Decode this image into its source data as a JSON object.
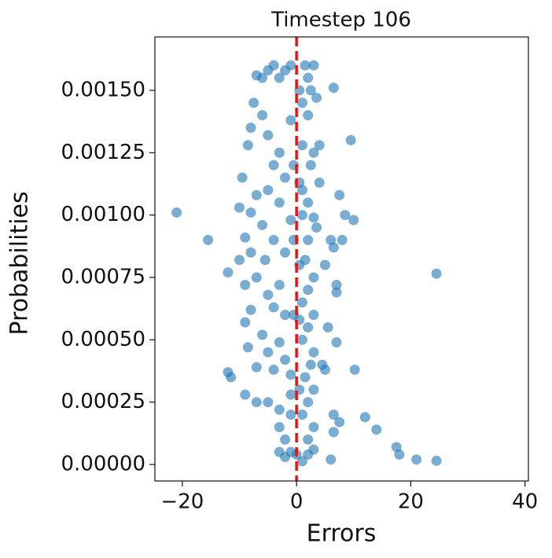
{
  "chart_data": {
    "type": "scatter",
    "title": "Timestep 106",
    "xlabel": "Errors",
    "ylabel": "Probabilities",
    "color": "#1f77b4",
    "vline": {
      "x": 0,
      "color": "#ee1111"
    },
    "x": [
      -21,
      -15.5,
      24.5,
      24.5,
      21,
      18,
      17.5,
      14,
      12,
      10.2,
      9.5,
      6.5,
      10,
      8.5,
      7.5,
      6.5,
      8,
      7,
      5,
      6.5,
      7.5,
      7,
      6.5,
      6,
      7,
      6,
      5.5,
      5,
      4.5,
      4,
      4,
      3.5,
      3,
      3.5,
      2.5,
      2,
      1.5,
      1,
      2,
      3,
      2.5,
      1,
      2,
      1,
      3,
      2,
      1.5,
      3,
      2,
      1,
      3,
      2,
      1,
      3,
      2.5,
      1.5,
      3,
      2,
      1,
      3,
      2,
      3,
      2,
      1,
      -1,
      -2,
      -3,
      -4,
      -5,
      -6,
      -7,
      -7.5,
      -6,
      -8,
      -8.5,
      -5,
      -3,
      -4,
      -2,
      -5,
      -9.5,
      -7,
      -3,
      -8,
      -10,
      -6,
      -9,
      -4,
      -2,
      -8,
      -5.5,
      -10,
      -12,
      -7,
      -3,
      -9,
      -5,
      -8,
      -4,
      -2,
      -9,
      -6,
      -3,
      -8.5,
      -5,
      -2,
      -7,
      -4,
      -1,
      -12,
      -11.5,
      -9,
      -7,
      -5,
      -3,
      -1,
      -3,
      -2,
      -3,
      -2,
      -1,
      0,
      0.5,
      -0.5,
      0.5,
      -0.5,
      0.5,
      -0.5,
      0.5,
      -1,
      1,
      -1,
      0.5,
      -1
    ],
    "values": [
      0.00101,
      0.0009,
      0.000765,
      1.5e-05,
      2e-05,
      4e-05,
      7e-05,
      0.00014,
      0.00019,
      0.00038,
      0.0013,
      0.00151,
      0.00098,
      0.001,
      0.00108,
      0.00087,
      0.0009,
      0.00072,
      0.0008,
      0.0002,
      0.00017,
      0.00049,
      0.00013,
      2e-05,
      0.00069,
      0.0009,
      0.00055,
      0.00038,
      0.0004,
      0.00128,
      0.00113,
      0.00095,
      0.0016,
      0.00147,
      0.0015,
      0.00155,
      0.0016,
      0.00145,
      0.0014,
      0.00125,
      0.0012,
      0.0011,
      0.00105,
      0.001,
      0.00099,
      0.0009,
      0.00082,
      0.00075,
      0.0007,
      0.00065,
      0.0006,
      0.00055,
      0.0005,
      0.00045,
      0.0004,
      0.00035,
      0.0003,
      0.00025,
      0.0002,
      0.00015,
      0.0001,
      6e-05,
      4e-05,
      1.3e-05,
      0.0016,
      0.00158,
      0.00155,
      0.0016,
      0.00158,
      0.00155,
      0.00156,
      0.00145,
      0.0014,
      0.00135,
      0.00128,
      0.00132,
      0.00125,
      0.0012,
      0.00115,
      0.0011,
      0.00115,
      0.00108,
      0.00105,
      0.00101,
      0.00103,
      0.00096,
      0.00091,
      0.0009,
      0.00085,
      0.00085,
      0.00082,
      0.00082,
      0.00077,
      0.00075,
      0.00072,
      0.00072,
      0.00068,
      0.00062,
      0.00063,
      0.0006,
      0.00057,
      0.00052,
      0.00049,
      0.00047,
      0.00045,
      0.00042,
      0.00039,
      0.00038,
      0.00036,
      0.00037,
      0.00035,
      0.00028,
      0.00025,
      0.00025,
      0.00022,
      0.0002,
      0.00015,
      0.0001,
      5e-05,
      3e-05,
      5e-05,
      4e-05,
      0.0008,
      0.0012,
      0.0015,
      0.0006,
      0.0003,
      0.0009,
      0.00113,
      0.00138,
      0.00128,
      0.00098,
      0.00058,
      0.00028
    ],
    "xlim": [
      -24.8,
      40.6
    ],
    "ylim": [
      -6.6e-05,
      0.001714
    ],
    "xticks": [
      {
        "value": -20,
        "label": "−20"
      },
      0,
      20,
      40
    ],
    "yticks": [
      {
        "value": 0,
        "label": "0.00000"
      },
      {
        "value": 0.00025,
        "label": "0.00025"
      },
      {
        "value": 0.0005,
        "label": "0.00050"
      },
      {
        "value": 0.00075,
        "label": "0.00075"
      },
      {
        "value": 0.001,
        "label": "0.00100"
      },
      {
        "value": 0.00125,
        "label": "0.00125"
      },
      {
        "value": 0.0015,
        "label": "0.00150"
      }
    ]
  }
}
